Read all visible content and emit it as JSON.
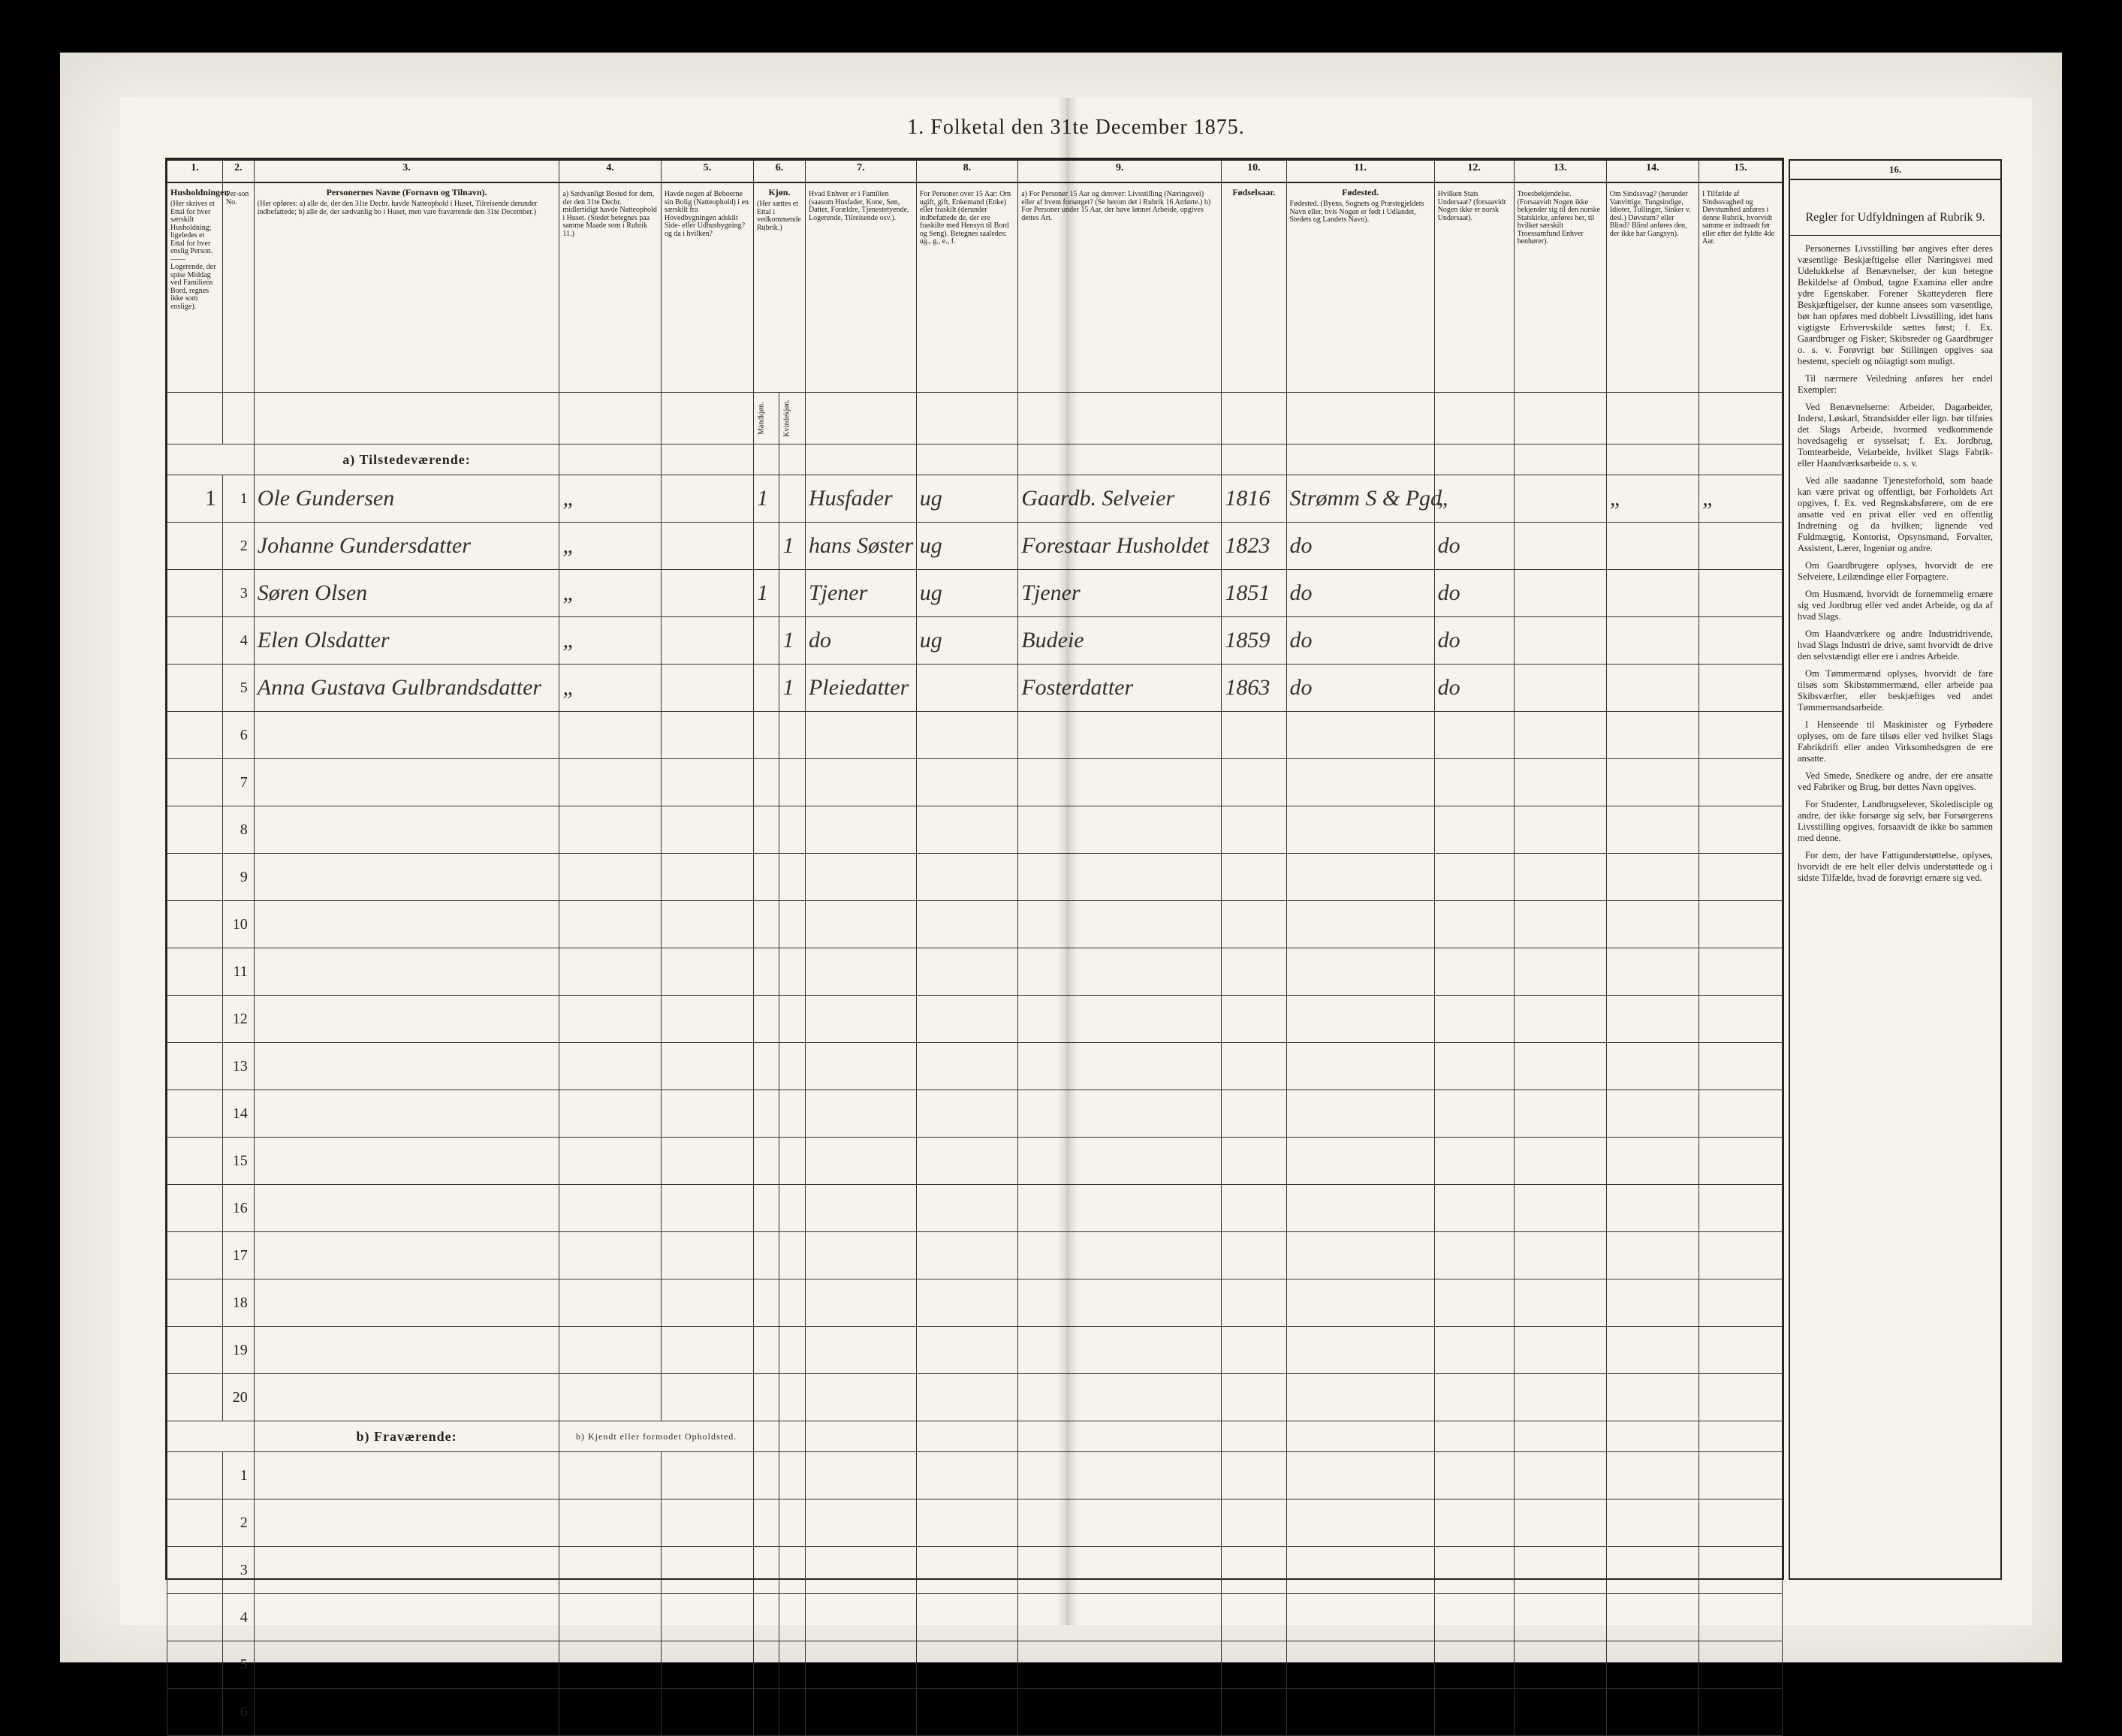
{
  "title": "1.  Folketal den 31te December 1875.",
  "columns": {
    "c1": {
      "num": "1.",
      "head": "Husholdninger.",
      "sub": "(Her skrives et Ettal for hver særskilt Husholdning; ligeledes et Ettal for hver enslig Person. —— Logerende, der spise Middag ved Familiens Bord, regnes ikke som enslige)."
    },
    "c2": {
      "num": "2.",
      "head": "Per-son No."
    },
    "c3": {
      "num": "3.",
      "head": "Personernes Navne (Fornavn og Tilnavn).",
      "sub": "(Her opføres: a) alle de, der den 31te Decbr. havde Natteophold i Huset, Tilreisende derunder indbefattede; b) alle de, der sædvanlig bo i Huset, men vare fraværende den 31te December.)"
    },
    "c4": {
      "num": "4.",
      "head": "a) Sædvanligt Bosted for dem, der den 31te Decbr. midlertidigt havde Natteophold i Huset. (Stedet betegnes paa samme Maade som i Rubrik 11.)"
    },
    "c5": {
      "num": "5.",
      "head": "Havde nogen af Beboerne sin Bolig (Natteophold) i en særskilt fra Hovedbygningen adskilt Side- eller Udhusbygning? og da i hvilken?"
    },
    "c6": {
      "num": "6.",
      "head": "Kjøn.",
      "subM": "Mandkjøn.",
      "subK": "Kvindekjøn."
    },
    "c7": {
      "num": "7.",
      "head": "Hvad Enhver er i Familien (saasom Husfader, Kone, Søn, Datter, Forældre, Tjenestetyende, Logerende, Tilreisende osv.)."
    },
    "c8": {
      "num": "8.",
      "head": "For Personer over 15 Aar: Om ugift, gift, Enkemand (Enke) eller fraskilt (derunder indbefattede de, der ere fraskilte med Hensyn til Bord og Seng). Betegnes saaledes: ug., g., e., f."
    },
    "c9": {
      "num": "9.",
      "head": "a) For Personer 15 Aar og derover: Livsstilling (Næringsvei) eller af hvem forsørget? (Se herom det i Rubrik 16 Anførte.) b) For Personer under 15 Aar, der have lønnet Arbeide, opgives dettes Art."
    },
    "c10": {
      "num": "10.",
      "head": "Fødselsaar."
    },
    "c11": {
      "num": "11.",
      "head": "Fødested. (Byens, Sognets og Præstegjeldets Navn eller, hvis Nogen er født i Udlandet, Stedets og Landets Navn)."
    },
    "c12": {
      "num": "12.",
      "head": "Hvilken Stats Undersaat? (forsaavidt Nogen ikke er norsk Undersaat)."
    },
    "c13": {
      "num": "13.",
      "head": "Troesbekjendelse. (Forsaavidt Nogen ikke bekjender sig til den norske Statskirke, anføres her, til hvilket særskilt Troessamfund Enhver henhører)."
    },
    "c14": {
      "num": "14.",
      "head": "Om Sindssvag? (herunder Vanvittige, Tungsindige, Idioter, Tullinger, Sinker v. desl.) Døvstum? eller Blind? Blind anføres den, der ikke har Gangsyn)."
    },
    "c15": {
      "num": "15.",
      "head": "I Tilfælde af Sindssvaghed og Døvstumhed anføres i denne Rubrik, hvorvidt samme er indtraadt før eller efter det fyldte 4de Aar."
    }
  },
  "section_a": "a) Tilstedeværende:",
  "section_b": "b) Fraværende:",
  "section_b_extra": "b) Kjendt eller formodet Opholdsted.",
  "rows": [
    {
      "n": "1",
      "hh": "1",
      "name": "Ole Gundersen",
      "c4": "„",
      "c5": "",
      "m": "1",
      "k": "",
      "fam": "Husfader",
      "civ": "ug",
      "occ": "Gaardb. Selveier",
      "year": "1816",
      "place": "Strømm S & Pgd",
      "c12": "„",
      "c13": "",
      "c14": "„",
      "c15": "„"
    },
    {
      "n": "2",
      "hh": "",
      "name": "Johanne Gundersdatter",
      "c4": "„",
      "c5": "",
      "m": "",
      "k": "1",
      "fam": "hans Søster",
      "civ": "ug",
      "occ": "Forestaar Husholdet",
      "year": "1823",
      "place": "do",
      "c12": "do",
      "c13": "",
      "c14": "",
      "c15": ""
    },
    {
      "n": "3",
      "hh": "",
      "name": "Søren Olsen",
      "c4": "„",
      "c5": "",
      "m": "1",
      "k": "",
      "fam": "Tjener",
      "civ": "ug",
      "occ": "Tjener",
      "year": "1851",
      "place": "do",
      "c12": "do",
      "c13": "",
      "c14": "",
      "c15": ""
    },
    {
      "n": "4",
      "hh": "",
      "name": "Elen Olsdatter",
      "c4": "„",
      "c5": "",
      "m": "",
      "k": "1",
      "fam": "do",
      "civ": "ug",
      "occ": "Budeie",
      "year": "1859",
      "place": "do",
      "c12": "do",
      "c13": "",
      "c14": "",
      "c15": ""
    },
    {
      "n": "5",
      "hh": "",
      "name": "Anna Gustava Gulbrandsdatter",
      "c4": "„",
      "c5": "",
      "m": "",
      "k": "1",
      "fam": "Pleiedatter",
      "civ": "",
      "occ": "Fosterdatter",
      "year": "1863",
      "place": "do",
      "c12": "do",
      "c13": "",
      "c14": "",
      "c15": ""
    }
  ],
  "blank_rows_a": [
    "6",
    "7",
    "8",
    "9",
    "10",
    "11",
    "12",
    "13",
    "14",
    "15",
    "16",
    "17",
    "18",
    "19",
    "20"
  ],
  "blank_rows_b": [
    "1",
    "2",
    "3",
    "4",
    "5",
    "6"
  ],
  "side": {
    "num": "16.",
    "title": "Regler for Udfyldningen af Rubrik 9.",
    "paras": [
      "Personernes Livsstilling bør angives efter deres væsentlige Beskjæftigelse eller Næringsvei med Udelukkelse af Benævnelser, der kun betegne Bekildelse af Ombud, tagne Examina eller andre ydre Egenskaber. Forener Skatteyderen flere Beskjæftigelser, der kunne ansees som væsentlige, bør han opføres med dobbelt Livsstilling, idet hans vigtigste Erhvervskilde sættes først; f. Ex. Gaardbruger og Fisker; Skibsreder og Gaardbruger o. s. v. Forøvrigt bør Stillingen opgives saa bestemt, specielt og nöiagtigt som muligt.",
      "Til nærmere Veiledning anføres her endel Exempler:",
      "Ved Benævnelserne: Arbeider, Dagarbeider, Inderst, Løskarl, Strandsidder eller lign. bør tilføies det Slags Arbeide, hvormed vedkommende hovedsagelig er sysselsat; f. Ex. Jordbrug, Tomtearbeide, Veiarbeide, hvilket Slags Fabrik- eller Haandværksarbeide o. s. v.",
      "Ved alle saadanne Tjenesteforhold, som baade kan være privat og offentligt, bør Forholdets Art opgives, f. Ex. ved Regnskabsførere, om de ere ansatte ved en privat eller ved en offentlig Indretning og da hvilken; lignende ved Fuldmægtig, Kontorist, Opsynsmand, Forvalter, Assistent, Lærer, Ingeniør og andre.",
      "Om Gaardbrugere oplyses, hvorvidt de ere Selveiere, Leilændinge eller Forpagtere.",
      "Om Husmænd, hvorvidt de fornemmelig ernære sig ved Jordbrug eller ved andet Arbeide, og da af hvad Slags.",
      "Om Haandværkere og andre Industridrivende, hvad Slags Industri de drive, samt hvorvidt de drive den selvstændigt eller ere i andres Arbeide.",
      "Om Tømmermænd oplyses, hvorvidt de fare tilsøs som Skibstømmermænd, eller arbeide paa Skibsværfter, eller beskjæftiges ved andet Tømmermandsarbeide.",
      "I Henseende til Maskinister og Fyrbødere oplyses, om de fare tilsøs eller ved hvilket Slags Fabrikdrift eller anden Virksomhedsgren de ere ansatte.",
      "Ved Smede, Snedkere og andre, der ere ansatte ved Fabriker og Brug, bør dettes Navn opgives.",
      "For Studenter, Landbrugselever, Skoledisciple og andre, der ikke forsørge sig selv, bør Forsørgerens Livsstilling opgives, forsaavidt de ikke bo sammen med denne.",
      "For dem, der have Fattigunderstøttelse, oplyses, hvorvidt de ere helt eller delvis understøttede og i sidste Tilfælde, hvad de forøvrigt ernære sig ved."
    ]
  },
  "style": {
    "page_bg": "#f7f3ea",
    "outer_bg": "#000000",
    "rule_color": "#222222",
    "hand_color": "#35302a",
    "header_font_size": 12,
    "body_font_size": 26,
    "title_font_size": 28
  }
}
